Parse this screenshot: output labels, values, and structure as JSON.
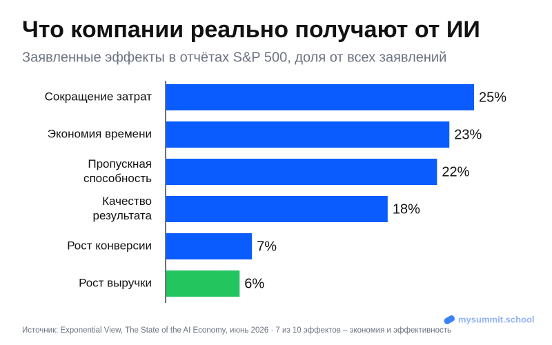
{
  "chart_data": {
    "type": "bar",
    "orientation": "horizontal",
    "title": "Что компании реально получают от ИИ",
    "subtitle": "Заявленные эффекты в отчётах S&P 500, доля от всех заявлений",
    "categories": [
      "Сокращение затрат",
      "Экономия времени",
      "Пропускная способность",
      "Качество результата",
      "Рост конверсии",
      "Рост выручки"
    ],
    "values": [
      25,
      23,
      22,
      18,
      7,
      6
    ],
    "value_labels": [
      "25%",
      "23%",
      "22%",
      "18%",
      "7%",
      "6%"
    ],
    "colors": [
      "#0b5cff",
      "#0b5cff",
      "#0b5cff",
      "#0b5cff",
      "#0b5cff",
      "#22c55e"
    ],
    "source": "Источник: Exponential View, The State of the AI Economy, июнь 2026 · 7 из 10 эффектов – экономия и эффективность",
    "brand": "mysummit.school"
  }
}
